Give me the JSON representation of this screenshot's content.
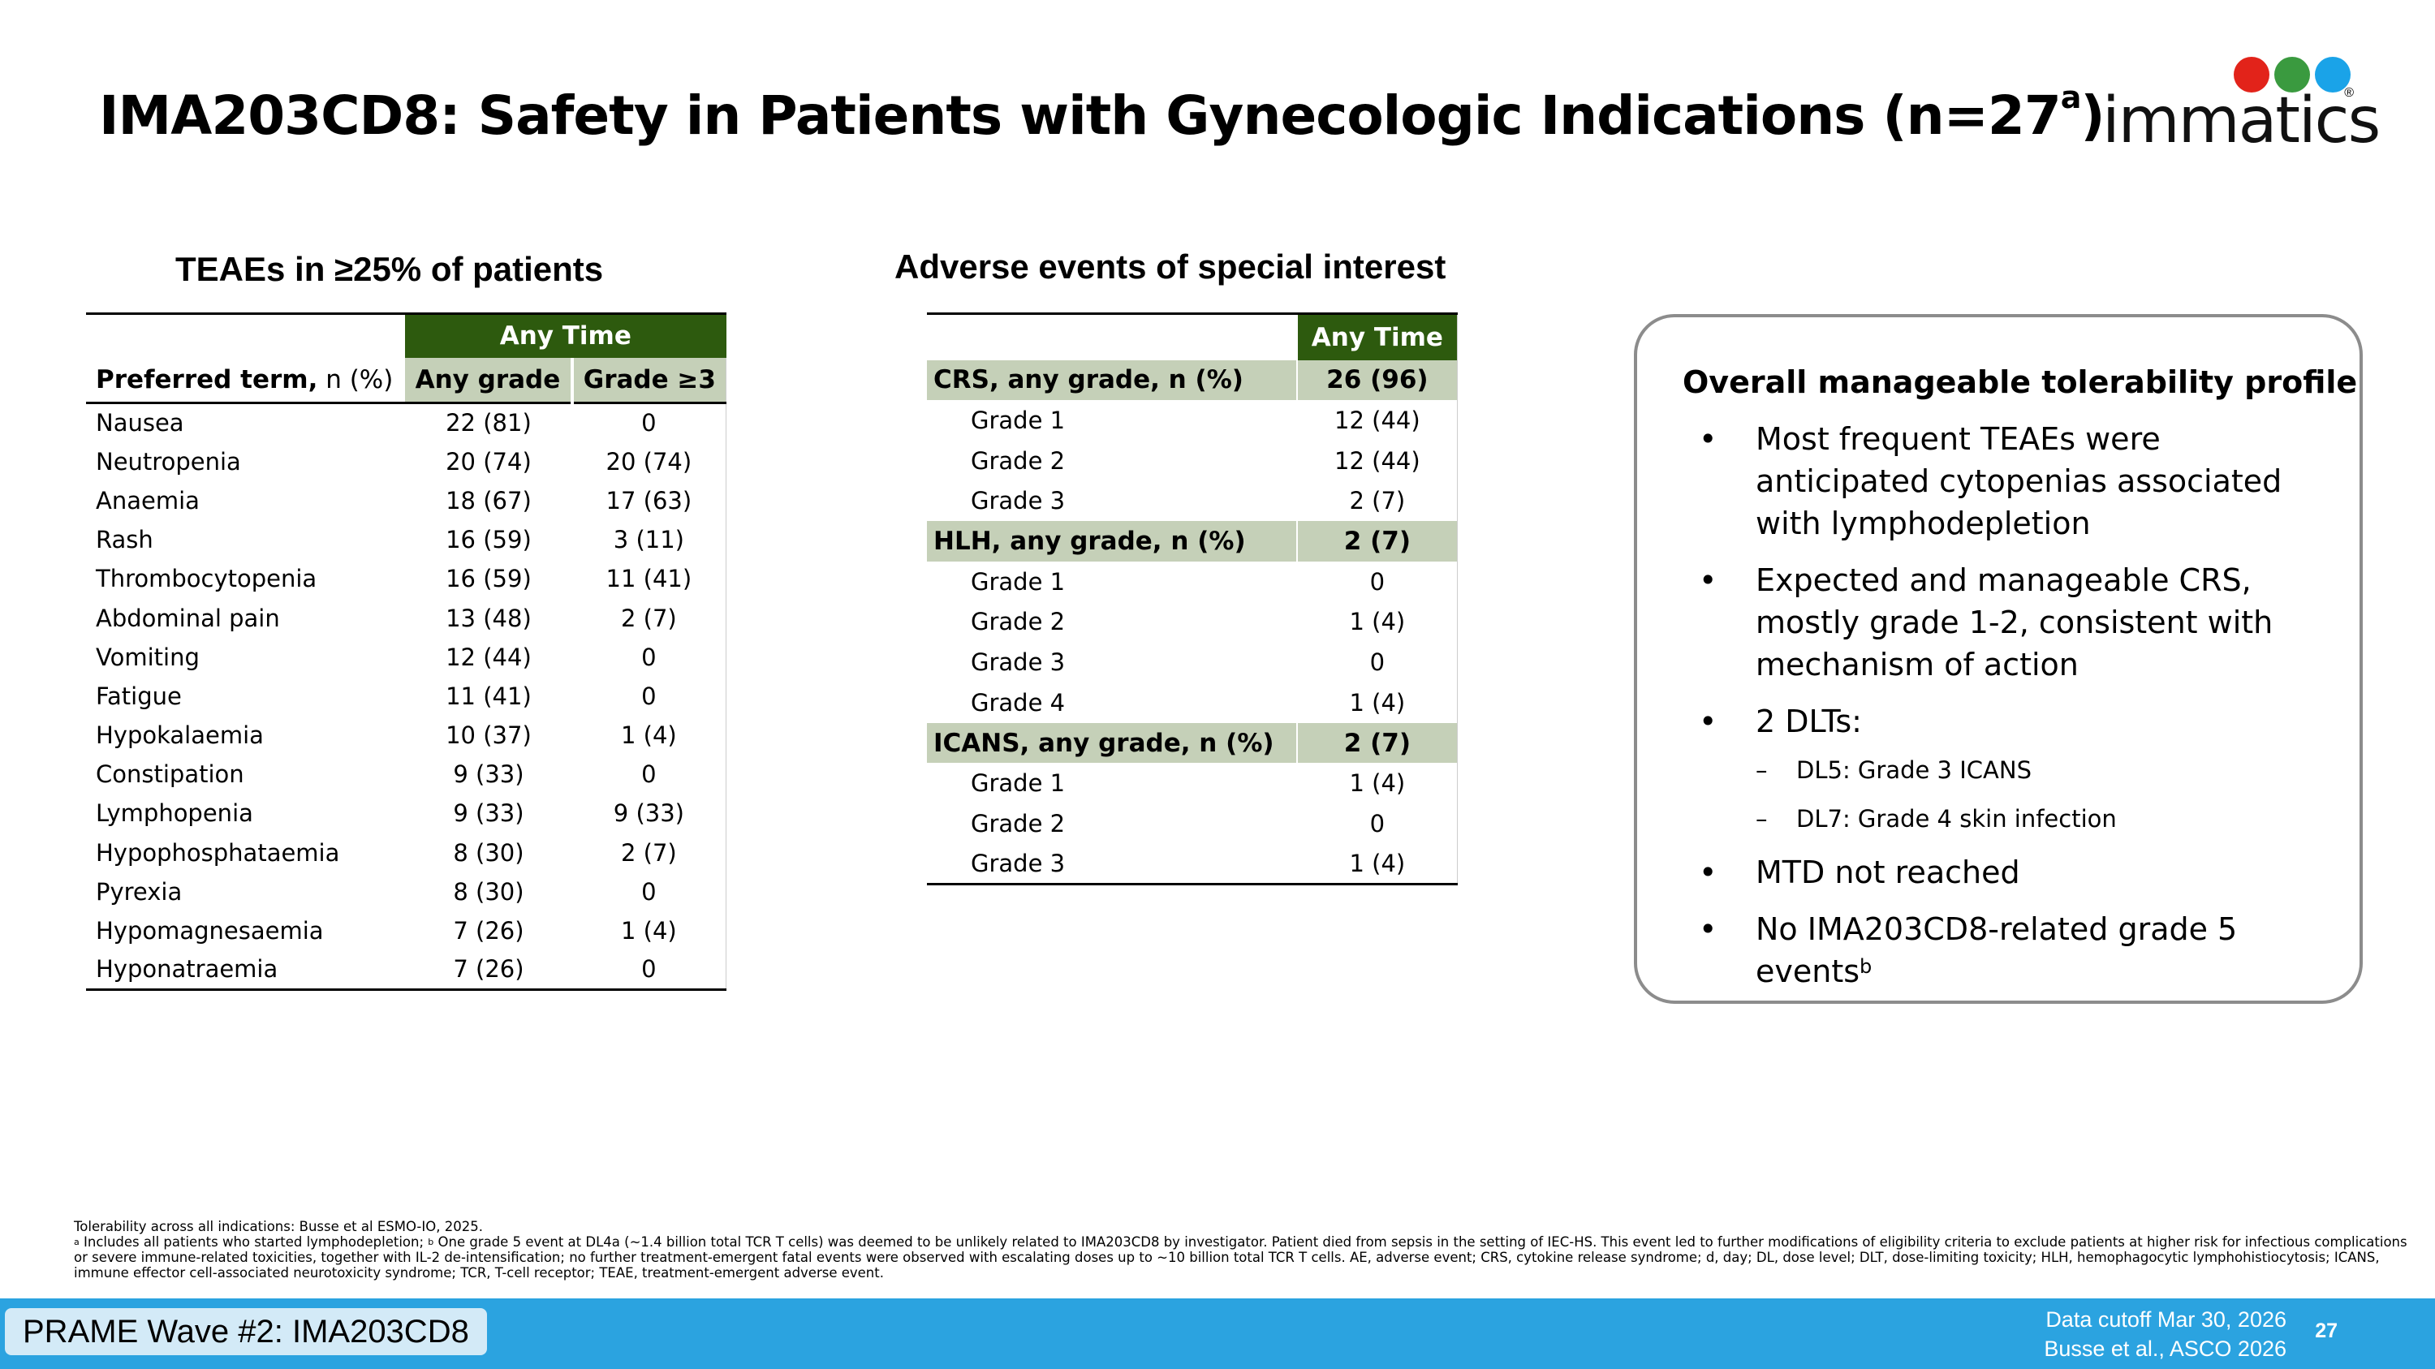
{
  "header": {
    "title": "IMA203CD8: Safety in Patients with Gynecologic Indications (n=27",
    "title_sup": "a",
    "title_close": ")",
    "logo_text": "immatics",
    "logo_reg": "®"
  },
  "teae": {
    "heading": "TEAEs in ≥25% of patients",
    "any_time": "Any Time",
    "col_name_bold": "Preferred term,",
    "col_name_unit": " n (%)",
    "col_any": "Any grade",
    "col_g3": "Grade ≥3",
    "rows": [
      {
        "term": "Nausea",
        "any": "22 (81)",
        "g3": "0"
      },
      {
        "term": "Neutropenia",
        "any": "20 (74)",
        "g3": "20 (74)"
      },
      {
        "term": "Anaemia",
        "any": "18 (67)",
        "g3": "17 (63)"
      },
      {
        "term": "Rash",
        "any": "16 (59)",
        "g3": "3 (11)"
      },
      {
        "term": "Thrombocytopenia",
        "any": "16 (59)",
        "g3": "11 (41)"
      },
      {
        "term": "Abdominal pain",
        "any": "13 (48)",
        "g3": "2 (7)"
      },
      {
        "term": "Vomiting",
        "any": "12 (44)",
        "g3": "0"
      },
      {
        "term": "Fatigue",
        "any": "11 (41)",
        "g3": "0"
      },
      {
        "term": "Hypokalaemia",
        "any": "10 (37)",
        "g3": "1 (4)"
      },
      {
        "term": "Constipation",
        "any": "9 (33)",
        "g3": "0"
      },
      {
        "term": "Lymphopenia",
        "any": "9 (33)",
        "g3": "9 (33)"
      },
      {
        "term": "Hypophosphataemia",
        "any": "8 (30)",
        "g3": "2 (7)"
      },
      {
        "term": "Pyrexia",
        "any": "8 (30)",
        "g3": "0"
      },
      {
        "term": "Hypomagnesaemia",
        "any": "7 (26)",
        "g3": "1 (4)"
      },
      {
        "term": "Hyponatraemia",
        "any": "7 (26)",
        "g3": "0"
      }
    ]
  },
  "aesi": {
    "heading": "Adverse events of special interest",
    "any_time": "Any Time",
    "rows": [
      {
        "type": "group",
        "name": "CRS, any grade, n (%)",
        "value": "26 (96)"
      },
      {
        "type": "sub",
        "name": "Grade 1",
        "value": "12 (44)"
      },
      {
        "type": "sub",
        "name": "Grade 2",
        "value": "12 (44)"
      },
      {
        "type": "sub",
        "name": "Grade 3",
        "value": "2 (7)"
      },
      {
        "type": "group",
        "name": "HLH, any grade, n (%)",
        "value": "2 (7)"
      },
      {
        "type": "sub",
        "name": "Grade 1",
        "value": "0"
      },
      {
        "type": "sub",
        "name": "Grade 2",
        "value": "1 (4)"
      },
      {
        "type": "sub",
        "name": "Grade 3",
        "value": "0"
      },
      {
        "type": "sub",
        "name": "Grade 4",
        "value": "1 (4)"
      },
      {
        "type": "group",
        "name": "ICANS, any grade, n (%)",
        "value": "2 (7)"
      },
      {
        "type": "sub",
        "name": "Grade 1",
        "value": "1 (4)"
      },
      {
        "type": "sub",
        "name": "Grade 2",
        "value": "0"
      },
      {
        "type": "sub",
        "name": "Grade 3",
        "value": "1 (4)"
      }
    ]
  },
  "summary": {
    "title": "Overall manageable tolerability profile",
    "b1": "Most frequent TEAEs were anticipated cytopenias associated with lymphodepletion",
    "b2": "Expected and manageable CRS, mostly grade 1-2, consistent with mechanism of action",
    "b3": "2 DLTs:",
    "b3_sub1": "DL5: Grade 3 ICANS",
    "b3_sub2": "DL7: Grade 4 skin infection",
    "b4": "MTD not reached",
    "b5": "No IMA203CD8-related grade 5 events",
    "b5_sup": "b",
    "bullet": "•",
    "dash": "–"
  },
  "footnotes": {
    "line1": "Tolerability across all indications: Busse et al ESMO-IO, 2025.",
    "sup_a": "a",
    "text_a": " Includes all patients who started lymphodepletion; ",
    "sup_b": "b",
    "text_b": " One grade 5 event at DL4a (~1.4 billion total TCR T cells) was deemed to be unlikely related to IMA203CD8 by investigator. Patient died from sepsis in the setting of IEC-HS. This event led to further modifications of eligibility criteria to exclude patients at higher risk for infectious complications or severe immune-related toxicities, together with IL-2 de-intensification; no further treatment-emergent fatal events were observed with escalating doses up to ~10 billion total TCR T cells. AE, adverse event; CRS, cytokine release syndrome; d, day; DL, dose level; DLT, dose-limiting toxicity; HLH, hemophagocytic lymphohistiocytosis; ICANS, immune effector cell-associated neurotoxicity syndrome; TCR, T-cell receptor; TEAE, treatment-emergent adverse event."
  },
  "footer": {
    "tag": "PRAME Wave #2: IMA203CD8",
    "cutoff": "Data cutoff Mar 30, 2026",
    "citation": "Busse et al., ASCO 2026",
    "page": "27"
  }
}
